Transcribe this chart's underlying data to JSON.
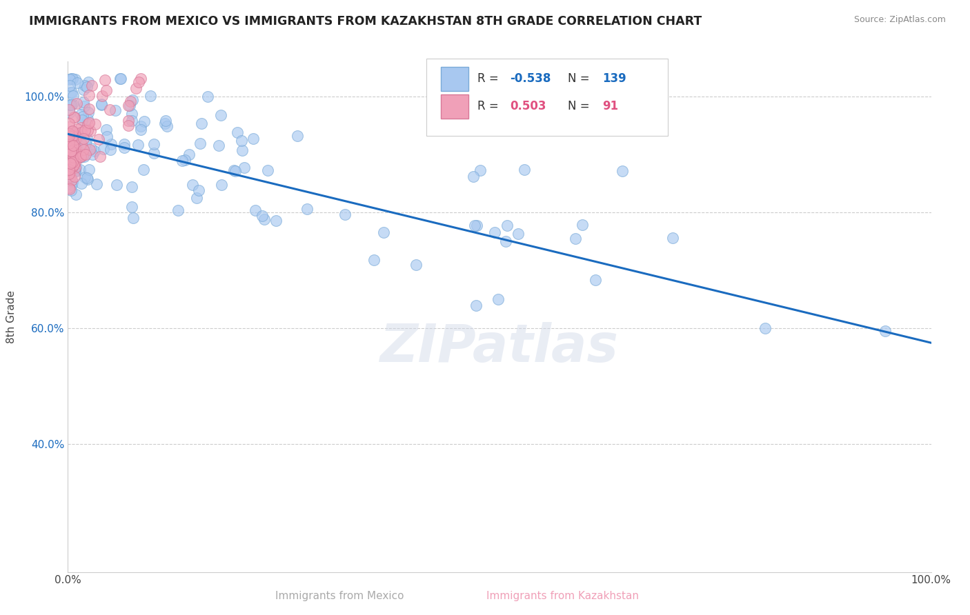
{
  "title": "IMMIGRANTS FROM MEXICO VS IMMIGRANTS FROM KAZAKHSTAN 8TH GRADE CORRELATION CHART",
  "source": "Source: ZipAtlas.com",
  "xlabel_mexico": "Immigrants from Mexico",
  "xlabel_kazakhstan": "Immigrants from Kazakhstan",
  "ylabel": "8th Grade",
  "r_mexico": -0.538,
  "n_mexico": 139,
  "r_kazakhstan": 0.503,
  "n_kazakhstan": 91,
  "color_mexico": "#a8c8f0",
  "color_mexico_edge": "#7aaad8",
  "color_kazakhstan": "#f0a0b8",
  "color_kazakhstan_edge": "#d87898",
  "trend_color": "#1a6bbf",
  "background": "#ffffff",
  "grid_color": "#cccccc",
  "title_color": "#222222",
  "source_color": "#888888",
  "watermark": "ZIPatlas",
  "xlim": [
    0.0,
    1.0
  ],
  "ylim_low": 0.18,
  "ylim_high": 1.06,
  "yticks": [
    0.4,
    0.6,
    0.8,
    1.0
  ],
  "ytick_labels": [
    "40.0%",
    "60.0%",
    "80.0%",
    "100.0%"
  ],
  "trend_x0": 0.0,
  "trend_x1": 1.0,
  "trend_y0": 0.935,
  "trend_y1": 0.575
}
